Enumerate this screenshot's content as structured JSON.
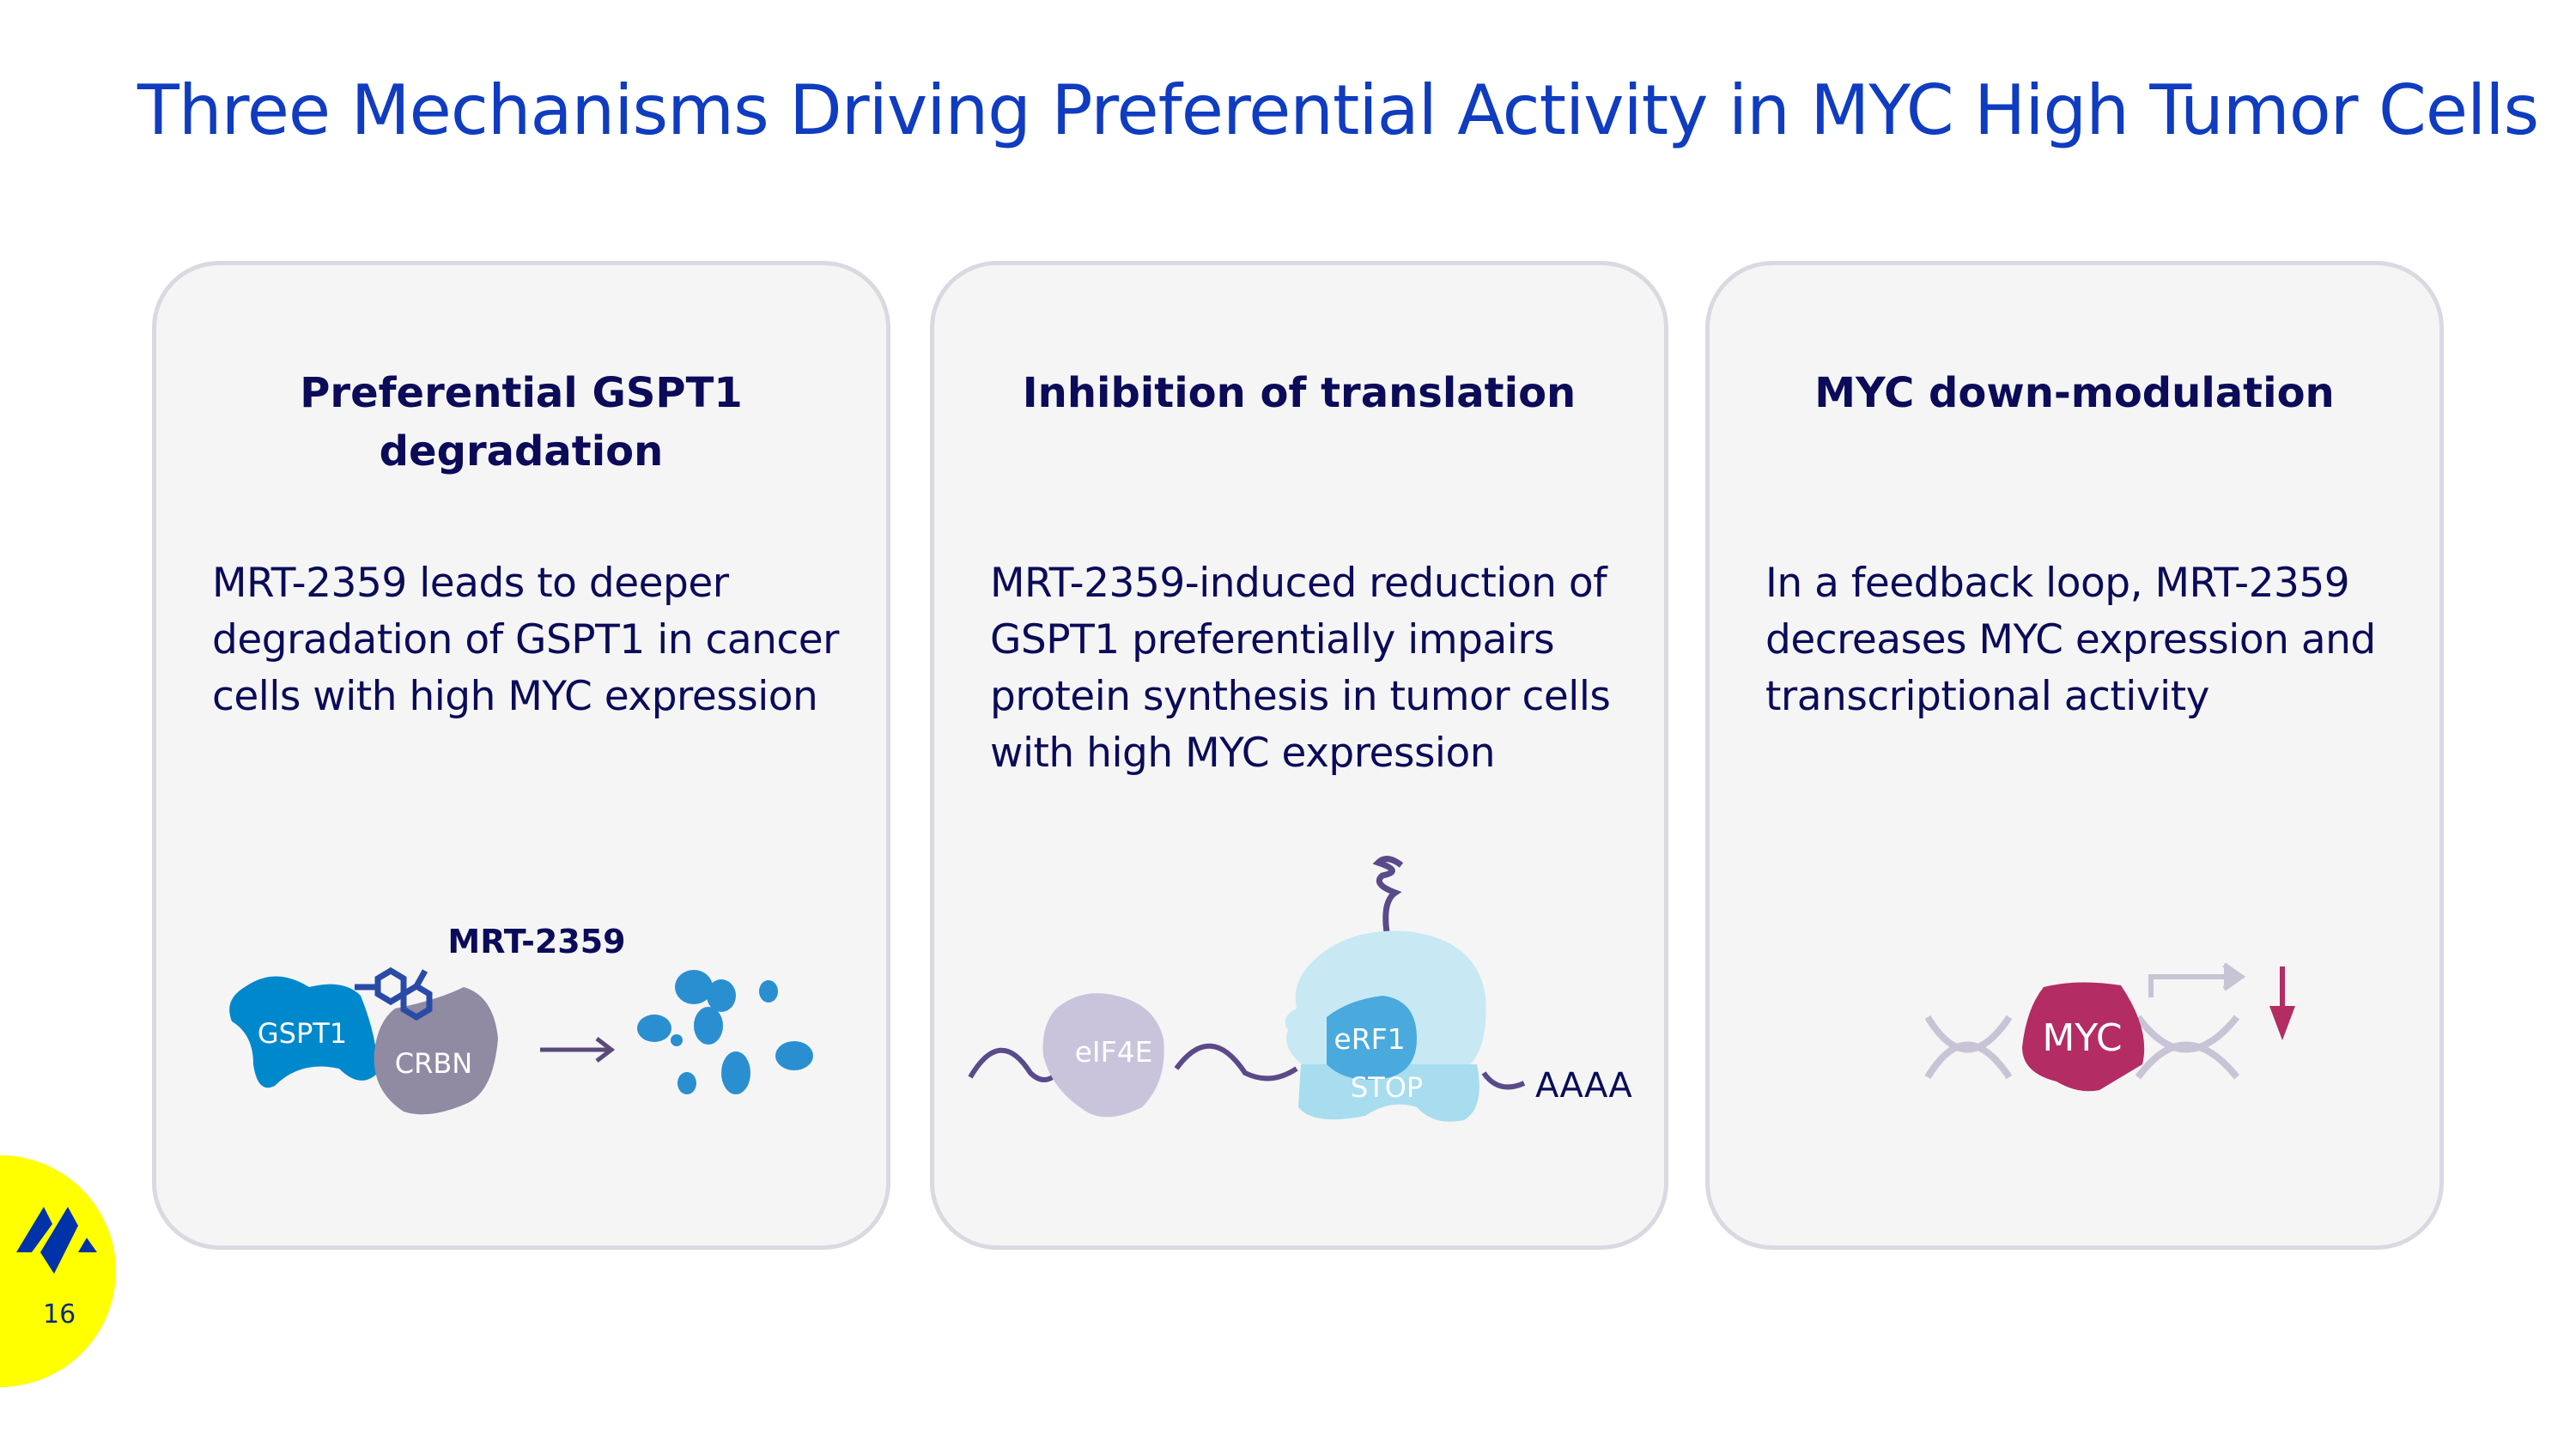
{
  "title": "Three Mechanisms Driving Preferential Activity in MYC High Tumor Cells",
  "cards": [
    {
      "heading": "Preferential GSPT1 degradation",
      "body": "MRT-2359 leads to deeper degradation of GSPT1 in cancer cells with high MYC expression",
      "figure": {
        "drug": "MRT-2359",
        "protein1": "GSPT1",
        "protein2": "CRBN"
      }
    },
    {
      "heading": "Inhibition of translation",
      "body": "MRT-2359-induced reduction of GSPT1 preferentially impairs protein synthesis in tumor cells with high MYC expression",
      "figure": {
        "factor1": "eIF4E",
        "factor2": "eRF1",
        "codon": "STOP",
        "tail": "AAAA"
      }
    },
    {
      "heading": "MYC down-modulation",
      "body": "In a feedback loop, MRT-2359 decreases MYC expression and transcriptional activity",
      "figure": {
        "protein": "MYC"
      }
    }
  ],
  "footer": {
    "page_number": "16",
    "logo": "company-logo"
  },
  "colors": {
    "title": "#0f3cc0",
    "text": "#0b0b5a",
    "gspt1": "#0088cc",
    "crbn": "#918aa3",
    "myc": "#b32c64",
    "badge": "#ffff00"
  }
}
